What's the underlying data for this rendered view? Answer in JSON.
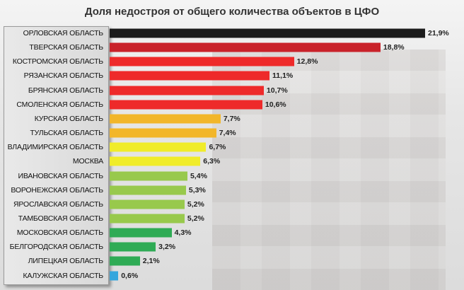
{
  "chart_data": {
    "type": "bar",
    "orientation": "horizontal",
    "title": "Доля недостроя от общего количества объектов в ЦФО",
    "xlim": [
      0,
      23
    ],
    "grid": false,
    "categories": [
      "ОРЛОВСКАЯ ОБЛАСТЬ",
      "ТВЕРСКАЯ ОБЛАСТЬ",
      "КОСТРОМСКАЯ ОБЛАСТЬ",
      "РЯЗАНСКАЯ ОБЛАСТЬ",
      "БРЯНСКАЯ ОБЛАСТЬ",
      "СМОЛЕНСКАЯ ОБЛАСТЬ",
      "КУРСКАЯ ОБЛАСТЬ",
      "ТУЛЬСКАЯ ОБЛАСТЬ",
      "ВЛАДИМИРСКАЯ ОБЛАСТЬ",
      "МОСКВА",
      "ИВАНОВСКАЯ ОБЛАСТЬ",
      "ВОРОНЕЖСКАЯ ОБЛАСТЬ",
      "ЯРОСЛАВСКАЯ ОБЛАСТЬ",
      "ТАМБОВСКАЯ ОБЛАСТЬ",
      "МОСКОВСКАЯ ОБЛАСТЬ",
      "БЕЛГОРОДСКАЯ ОБЛАСТЬ",
      "ЛИПЕЦКАЯ ОБЛАСТЬ",
      "КАЛУЖСКАЯ ОБЛАСТЬ"
    ],
    "values": [
      21.9,
      18.8,
      12.8,
      11.1,
      10.7,
      10.6,
      7.7,
      7.4,
      6.7,
      6.3,
      5.4,
      5.3,
      5.2,
      5.2,
      4.3,
      3.2,
      2.1,
      0.6
    ],
    "data_labels": [
      "21,9%",
      "18,8%",
      "12,8%",
      "11,1%",
      "10,7%",
      "10,6%",
      "7,7%",
      "7,4%",
      "6,7%",
      "6,3%",
      "5,4%",
      "5,3%",
      "5,2%",
      "5,2%",
      "4,3%",
      "3,2%",
      "2,1%",
      "0,6%"
    ],
    "colors": [
      "#1c1c1c",
      "#c9222a",
      "#ee2a2a",
      "#ee2a2a",
      "#ee2a2a",
      "#ee2a2a",
      "#f2b62a",
      "#f2b62a",
      "#f0ec2a",
      "#f0ec2a",
      "#98c94c",
      "#98c94c",
      "#98c94c",
      "#98c94c",
      "#2fab55",
      "#2fab55",
      "#2fab55",
      "#35a6dd"
    ]
  }
}
